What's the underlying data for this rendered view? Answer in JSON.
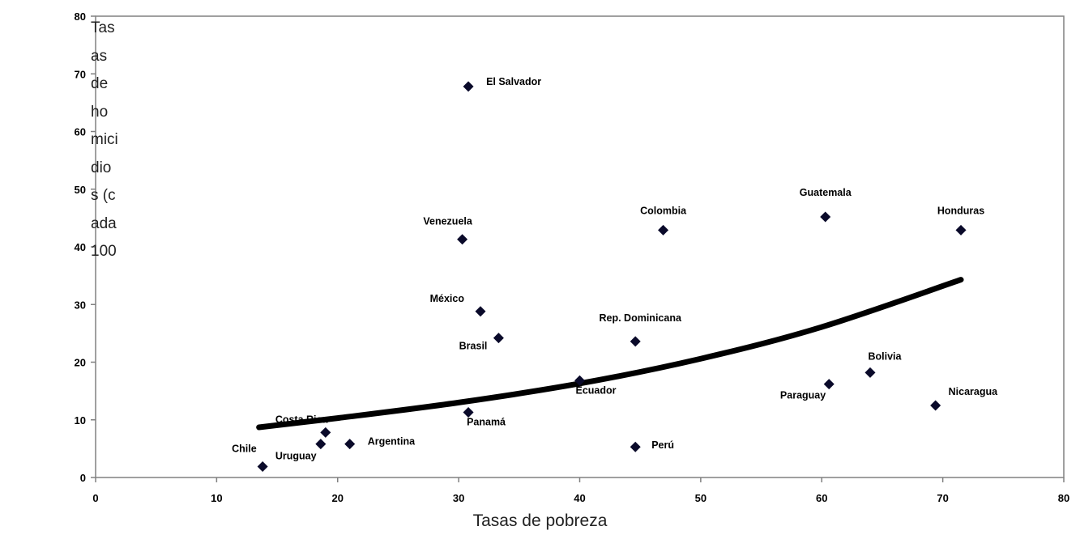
{
  "chart_data": {
    "type": "scatter",
    "title": "",
    "xlabel": "Tasas de pobreza",
    "ylabel": "Tasas de homicidios (cada 100",
    "xlim": [
      0,
      80
    ],
    "ylim": [
      0,
      80
    ],
    "xticks": [
      "0",
      "10",
      "20",
      "30",
      "40",
      "50",
      "60",
      "70",
      "80"
    ],
    "yticks": [
      "0",
      "10",
      "20",
      "30",
      "40",
      "50",
      "60",
      "70",
      "80"
    ],
    "grid": false,
    "legend": "none",
    "points": [
      {
        "label": "El Salvador",
        "x": 30.8,
        "y": 67.8
      },
      {
        "label": "Venezuela",
        "x": 30.3,
        "y": 41.3
      },
      {
        "label": "Colombia",
        "x": 46.9,
        "y": 42.9
      },
      {
        "label": "Guatemala",
        "x": 60.3,
        "y": 45.2
      },
      {
        "label": "Honduras",
        "x": 71.5,
        "y": 42.9
      },
      {
        "label": "México",
        "x": 31.8,
        "y": 28.8
      },
      {
        "label": "Brasil",
        "x": 33.3,
        "y": 24.2
      },
      {
        "label": "Rep. Dominicana",
        "x": 44.6,
        "y": 23.6
      },
      {
        "label": "Bolivia",
        "x": 64.0,
        "y": 18.2
      },
      {
        "label": "Ecuador",
        "x": 40.0,
        "y": 16.8
      },
      {
        "label": "Paraguay",
        "x": 60.6,
        "y": 16.2
      },
      {
        "label": "Nicaragua",
        "x": 69.4,
        "y": 12.5
      },
      {
        "label": "Panamá",
        "x": 30.8,
        "y": 11.3
      },
      {
        "label": "Costa Rica",
        "x": 19.0,
        "y": 7.8
      },
      {
        "label": "Uruguay",
        "x": 18.6,
        "y": 5.8
      },
      {
        "label": "Argentina",
        "x": 21.0,
        "y": 5.8
      },
      {
        "label": "Perú",
        "x": 44.6,
        "y": 5.3
      },
      {
        "label": "Chile",
        "x": 13.8,
        "y": 1.9
      }
    ],
    "trendline": {
      "type": "exponential",
      "x": [
        13.5,
        20,
        30,
        40,
        50,
        60,
        71.5
      ],
      "y": [
        8.7,
        10.3,
        13.0,
        16.3,
        20.6,
        26.1,
        34.3
      ]
    },
    "colors": {
      "points": "#0a0a2a",
      "trendline": "#000000",
      "frame": "#808080"
    }
  }
}
